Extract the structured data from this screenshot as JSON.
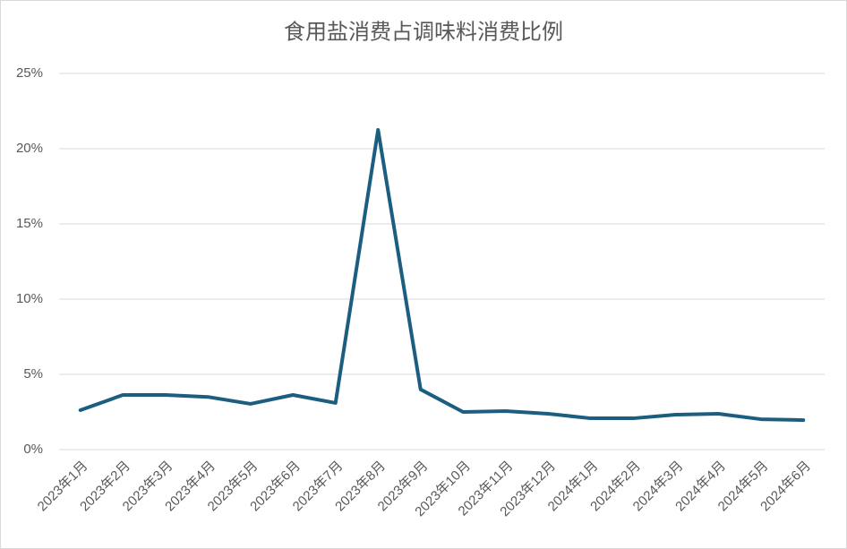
{
  "chart_data": {
    "type": "line",
    "title": "食用盐消费占调味料消费比例",
    "categories": [
      "2023年1月",
      "2023年2月",
      "2023年3月",
      "2023年4月",
      "2023年5月",
      "2023年6月",
      "2023年7月",
      "2023年8月",
      "2023年9月",
      "2023年10月",
      "2023年11月",
      "2023年12月",
      "2024年1月",
      "2024年2月",
      "2024年3月",
      "2024年4月",
      "2024年5月",
      "2024年6月"
    ],
    "series": [
      {
        "name": "食用盐消费占调味料消费比例",
        "color": "#1b5e7f",
        "values": [
          2.62,
          3.63,
          3.63,
          3.5,
          3.04,
          3.63,
          3.1,
          21.25,
          4.0,
          2.5,
          2.56,
          2.38,
          2.08,
          2.08,
          2.32,
          2.38,
          2.02,
          1.96
        ]
      }
    ],
    "ylim": [
      0,
      25
    ],
    "yticks": [
      {
        "value": 0,
        "label": "0%"
      },
      {
        "value": 5,
        "label": "5%"
      },
      {
        "value": 10,
        "label": "10%"
      },
      {
        "value": 15,
        "label": "15%"
      },
      {
        "value": 20,
        "label": "20%"
      },
      {
        "value": 25,
        "label": "25%"
      }
    ],
    "grid": true
  }
}
